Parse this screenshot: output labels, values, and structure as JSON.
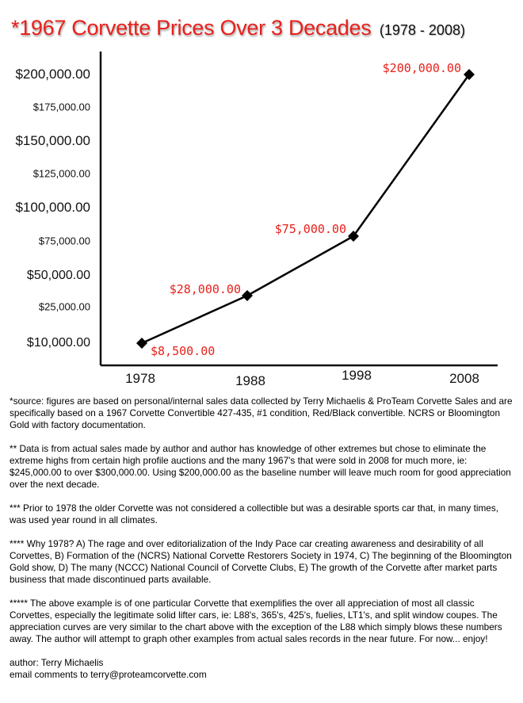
{
  "header": {
    "title": "*1967 Corvette Prices Over 3 Decades",
    "subtitle": "(1978 - 2008)"
  },
  "chart_data": {
    "type": "line",
    "x": [
      "1978",
      "1988",
      "1998",
      "2008"
    ],
    "y_axis_ticks": [
      "$10,000.00",
      "$25,000.00",
      "$50,000.00",
      "$75,000.00",
      "$100,000.00",
      "$125,000.00",
      "$150,000.00",
      "$175,000.00",
      "$200,000.00"
    ],
    "series": [
      {
        "values": [
          8500,
          28000,
          75000,
          200000
        ],
        "labels": [
          "$8,500.00",
          "$28,000.00",
          "$75,000.00",
          "$200,000.00"
        ]
      }
    ],
    "ylim": [
      0,
      200000
    ],
    "grid": false,
    "colors": {
      "line": "#000000",
      "label": "#e8211c"
    }
  },
  "notes": {
    "source": "*source: figures are based on personal/internal sales data collected by Terry Michaelis & ProTeam Corvette Sales and are specifically based on a 1967 Corvette Convertible 427-435, #1 condition, Red/Black convertible. NCRS or Bloomington Gold with factory documentation.",
    "note2": "** Data is from actual sales made by author and author has knowledge of other extremes but chose to eliminate the extreme highs from certain high profile auctions and the many 1967's that were sold in 2008 for much more, ie: $245,000.00 to over $300,000.00. Using $200,000.00 as the baseline number will leave much room for good appreciation over the next decade.",
    "note3": "*** Prior to 1978 the older Corvette was not considered a collectible but was a desirable sports car that, in many times, was used year round in all climates.",
    "note4": "**** Why 1978? A) The rage and over editorialization of the Indy Pace car creating awareness and desirability of all Corvettes, B)  Formation of the (NCRS) National Corvette Restorers Society in 1974, C) The beginning of the Bloomington Gold show, D) The many (NCCC) National Council of Corvette Clubs, E) The growth of the Corvette after market parts business that made discontinued parts available.",
    "note5": "***** The above example is of one particular Corvette that exemplifies the over all appreciation of most all classic Corvettes, especially the legitimate solid lifter cars, ie: L88's, 365's, 425's, fuelies, LT1's, and split window coupes. The appreciation curves are very similar to the chart above with the exception of the L88 which simply blows these numbers away. The author will attempt to graph other examples from actual sales records in the near future. For now... enjoy!",
    "author": "author: Terry Michaelis",
    "email": "email comments to terry@proteamcorvette.com"
  }
}
